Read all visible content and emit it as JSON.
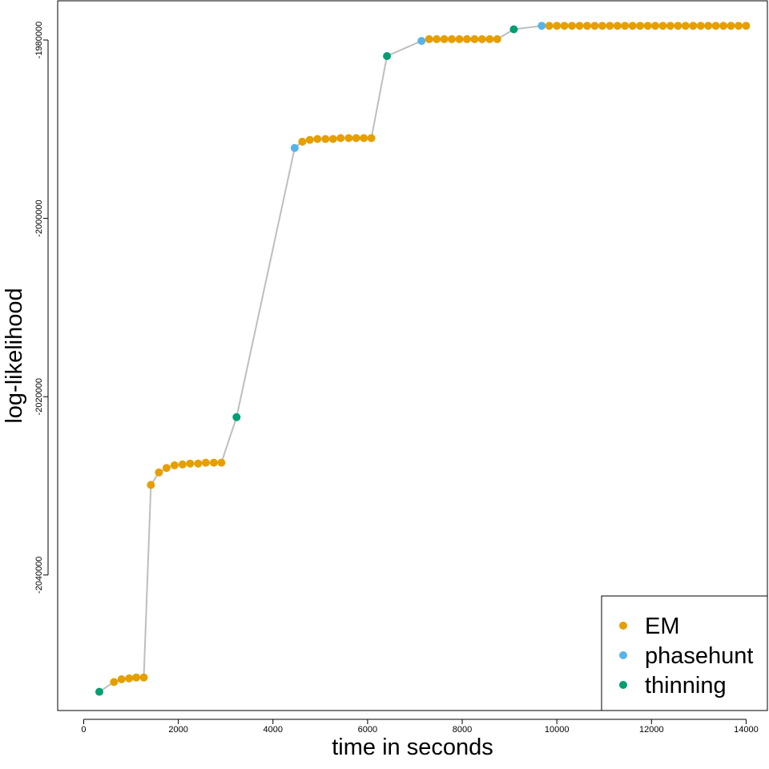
{
  "chart_data": {
    "type": "scatter",
    "title": "",
    "xlabel": "time in seconds",
    "ylabel": "log-likelihood",
    "xlim": [
      -550,
      14450
    ],
    "ylim": [
      -2055200,
      -1975600
    ],
    "xticks": [
      0,
      2000,
      4000,
      6000,
      8000,
      10000,
      12000,
      14000
    ],
    "xtick_labels": [
      "0",
      "2000",
      "4000",
      "6000",
      "8000",
      "10000",
      "12000",
      "14000"
    ],
    "yticks": [
      -1980000,
      -2000000,
      -2020000,
      -2040000
    ],
    "ytick_labels": [
      "-1980000",
      "-2000000",
      "-2020000",
      "-2040000"
    ],
    "grid": false,
    "connecting_line": true,
    "line_color": "#bebebe",
    "legend_position": "bottom-right",
    "legend": [
      {
        "key": "EM",
        "label": "EM",
        "color": "#E69F00"
      },
      {
        "key": "phasehunt",
        "label": "phasehunt",
        "color": "#56B4E9"
      },
      {
        "key": "thinning",
        "label": "thinning",
        "color": "#009E73"
      }
    ],
    "points": [
      {
        "x": 330,
        "y": -2053100,
        "method": "thinning"
      },
      {
        "x": 640,
        "y": -2052000,
        "method": "EM"
      },
      {
        "x": 800,
        "y": -2051700,
        "method": "EM"
      },
      {
        "x": 960,
        "y": -2051600,
        "method": "EM"
      },
      {
        "x": 1110,
        "y": -2051500,
        "method": "EM"
      },
      {
        "x": 1270,
        "y": -2051500,
        "method": "EM"
      },
      {
        "x": 1420,
        "y": -2029900,
        "method": "EM"
      },
      {
        "x": 1590,
        "y": -2028500,
        "method": "EM"
      },
      {
        "x": 1750,
        "y": -2028000,
        "method": "EM"
      },
      {
        "x": 1920,
        "y": -2027700,
        "method": "EM"
      },
      {
        "x": 2090,
        "y": -2027600,
        "method": "EM"
      },
      {
        "x": 2250,
        "y": -2027500,
        "method": "EM"
      },
      {
        "x": 2420,
        "y": -2027500,
        "method": "EM"
      },
      {
        "x": 2580,
        "y": -2027400,
        "method": "EM"
      },
      {
        "x": 2750,
        "y": -2027400,
        "method": "EM"
      },
      {
        "x": 2910,
        "y": -2027400,
        "method": "EM"
      },
      {
        "x": 3230,
        "y": -2022300,
        "method": "thinning"
      },
      {
        "x": 4460,
        "y": -1992100,
        "method": "phasehunt"
      },
      {
        "x": 4620,
        "y": -1991400,
        "method": "EM"
      },
      {
        "x": 4780,
        "y": -1991200,
        "method": "EM"
      },
      {
        "x": 4940,
        "y": -1991100,
        "method": "EM"
      },
      {
        "x": 5110,
        "y": -1991100,
        "method": "EM"
      },
      {
        "x": 5270,
        "y": -1991100,
        "method": "EM"
      },
      {
        "x": 5430,
        "y": -1991000,
        "method": "EM"
      },
      {
        "x": 5600,
        "y": -1991000,
        "method": "EM"
      },
      {
        "x": 5760,
        "y": -1991000,
        "method": "EM"
      },
      {
        "x": 5920,
        "y": -1991000,
        "method": "EM"
      },
      {
        "x": 6080,
        "y": -1991000,
        "method": "EM"
      },
      {
        "x": 6410,
        "y": -1981800,
        "method": "thinning"
      },
      {
        "x": 7140,
        "y": -1980100,
        "method": "phasehunt"
      },
      {
        "x": 7300,
        "y": -1979900,
        "method": "EM"
      },
      {
        "x": 7460,
        "y": -1979900,
        "method": "EM"
      },
      {
        "x": 7620,
        "y": -1979900,
        "method": "EM"
      },
      {
        "x": 7780,
        "y": -1979900,
        "method": "EM"
      },
      {
        "x": 7940,
        "y": -1979900,
        "method": "EM"
      },
      {
        "x": 8100,
        "y": -1979900,
        "method": "EM"
      },
      {
        "x": 8260,
        "y": -1979900,
        "method": "EM"
      },
      {
        "x": 8420,
        "y": -1979900,
        "method": "EM"
      },
      {
        "x": 8580,
        "y": -1979900,
        "method": "EM"
      },
      {
        "x": 8740,
        "y": -1979900,
        "method": "EM"
      },
      {
        "x": 9090,
        "y": -1978800,
        "method": "thinning"
      },
      {
        "x": 9680,
        "y": -1978400,
        "method": "phasehunt"
      },
      {
        "x": 9840,
        "y": -1978400,
        "method": "EM"
      },
      {
        "x": 10000,
        "y": -1978400,
        "method": "EM"
      },
      {
        "x": 10160,
        "y": -1978400,
        "method": "EM"
      },
      {
        "x": 10320,
        "y": -1978400,
        "method": "EM"
      },
      {
        "x": 10480,
        "y": -1978400,
        "method": "EM"
      },
      {
        "x": 10640,
        "y": -1978400,
        "method": "EM"
      },
      {
        "x": 10800,
        "y": -1978400,
        "method": "EM"
      },
      {
        "x": 10960,
        "y": -1978400,
        "method": "EM"
      },
      {
        "x": 11120,
        "y": -1978400,
        "method": "EM"
      },
      {
        "x": 11280,
        "y": -1978400,
        "method": "EM"
      },
      {
        "x": 11440,
        "y": -1978400,
        "method": "EM"
      },
      {
        "x": 11600,
        "y": -1978400,
        "method": "EM"
      },
      {
        "x": 11760,
        "y": -1978400,
        "method": "EM"
      },
      {
        "x": 11920,
        "y": -1978400,
        "method": "EM"
      },
      {
        "x": 12080,
        "y": -1978400,
        "method": "EM"
      },
      {
        "x": 12240,
        "y": -1978400,
        "method": "EM"
      },
      {
        "x": 12400,
        "y": -1978400,
        "method": "EM"
      },
      {
        "x": 12560,
        "y": -1978400,
        "method": "EM"
      },
      {
        "x": 12720,
        "y": -1978400,
        "method": "EM"
      },
      {
        "x": 12880,
        "y": -1978400,
        "method": "EM"
      },
      {
        "x": 13040,
        "y": -1978400,
        "method": "EM"
      },
      {
        "x": 13200,
        "y": -1978400,
        "method": "EM"
      },
      {
        "x": 13360,
        "y": -1978400,
        "method": "EM"
      },
      {
        "x": 13520,
        "y": -1978400,
        "method": "EM"
      },
      {
        "x": 13680,
        "y": -1978400,
        "method": "EM"
      },
      {
        "x": 13840,
        "y": -1978400,
        "method": "EM"
      },
      {
        "x": 14000,
        "y": -1978400,
        "method": "EM"
      }
    ]
  }
}
